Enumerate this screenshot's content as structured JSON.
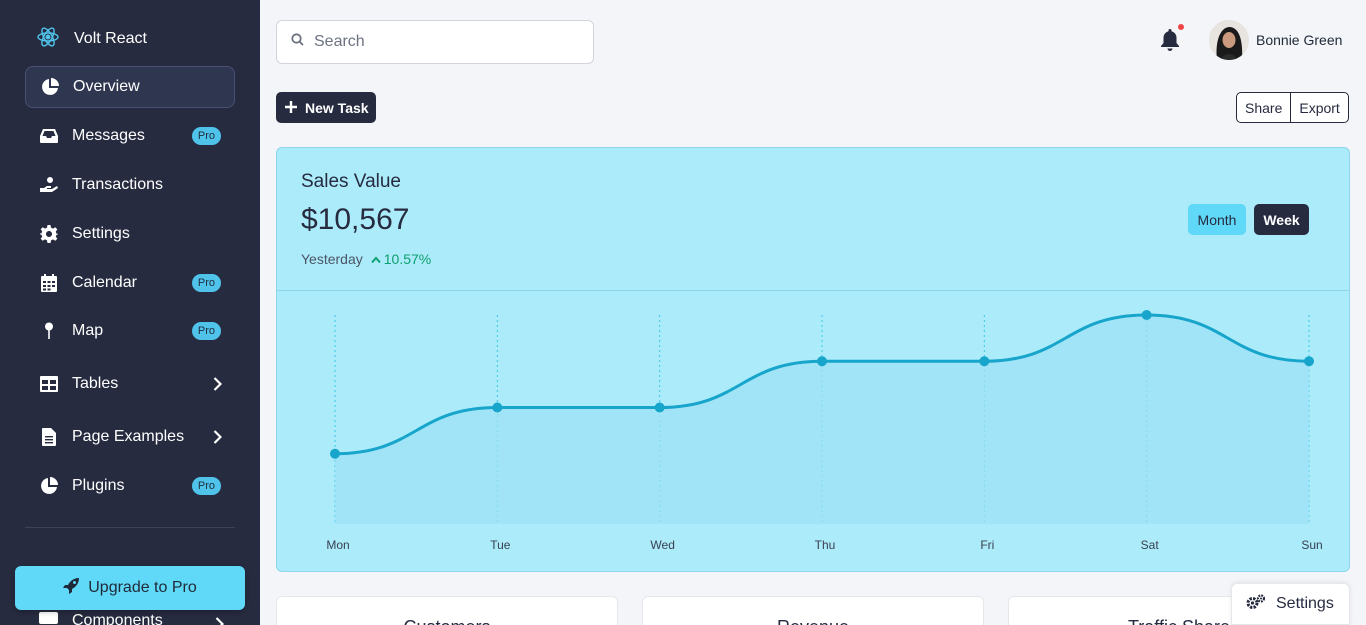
{
  "brand": {
    "name": "Volt React"
  },
  "sidebar": {
    "items": [
      {
        "label": "Overview",
        "icon": "pie-chart-icon",
        "active": true
      },
      {
        "label": "Messages",
        "icon": "inbox-icon",
        "badge": "Pro"
      },
      {
        "label": "Transactions",
        "icon": "hand-coin-icon"
      },
      {
        "label": "Settings",
        "icon": "gear-icon"
      },
      {
        "label": "Calendar",
        "icon": "calendar-icon",
        "badge": "Pro"
      },
      {
        "label": "Map",
        "icon": "map-pin-icon",
        "badge": "Pro"
      },
      {
        "label": "Tables",
        "icon": "table-icon",
        "chevron": true
      },
      {
        "label": "Page Examples",
        "icon": "file-icon",
        "chevron": true
      },
      {
        "label": "Plugins",
        "icon": "pie-chart-icon",
        "badge": "Pro"
      }
    ],
    "components_label": "Components",
    "upgrade_label": "Upgrade to Pro"
  },
  "search": {
    "placeholder": "Search",
    "value": ""
  },
  "user": {
    "name": "Bonnie Green"
  },
  "actions": {
    "new_task": "New Task",
    "share": "Share",
    "export": "Export"
  },
  "sales": {
    "title": "Sales Value",
    "value": "$10,567",
    "period_label": "Yesterday",
    "change": "10.57%",
    "toggle_month": "Month",
    "toggle_week": "Week"
  },
  "chart_data": {
    "type": "area",
    "categories": [
      "Mon",
      "Tue",
      "Wed",
      "Thu",
      "Fri",
      "Sat",
      "Sun"
    ],
    "values": [
      1,
      2,
      2,
      3,
      3,
      4,
      3
    ],
    "ylim": [
      0,
      4
    ],
    "grid": "vertical dotted",
    "colors": {
      "line": "#17a5cb",
      "fill": "#9ee2f6"
    }
  },
  "bottom_cards": [
    "Customers",
    "Revenue",
    "Traffic Share"
  ],
  "settings_float": {
    "label": "Settings"
  },
  "colors": {
    "sidebar": "#262b40",
    "accent": "#60d8f8",
    "card": "#acebfa",
    "positive": "#0e9f6e"
  }
}
